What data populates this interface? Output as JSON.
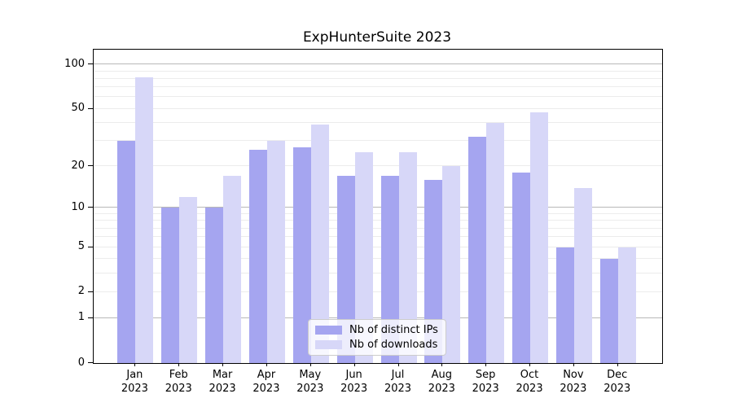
{
  "chart_data": {
    "type": "bar",
    "title": "ExpHunterSuite 2023",
    "categories": [
      "Jan",
      "Feb",
      "Mar",
      "Apr",
      "May",
      "Jun",
      "Jul",
      "Aug",
      "Sep",
      "Oct",
      "Nov",
      "Dec"
    ],
    "year_label": "2023",
    "series": [
      {
        "name": "Nb of distinct IPs",
        "color": "#a5a5f0",
        "values": [
          30,
          10,
          10,
          26,
          27,
          17,
          17,
          16,
          32,
          18,
          5,
          4
        ]
      },
      {
        "name": "Nb of downloads",
        "color": "#d7d7f8",
        "values": [
          82,
          12,
          17,
          30,
          39,
          25,
          25,
          20,
          40,
          47,
          14,
          5
        ]
      }
    ],
    "xlabel": "",
    "ylabel": "",
    "yscale": "log1p",
    "ylim": [
      0,
      126
    ],
    "y_ticks": [
      0,
      1,
      2,
      5,
      10,
      20,
      50,
      100
    ],
    "y_major_gridlines": [
      1,
      10,
      100
    ],
    "y_minor_gridlines": [
      2,
      3,
      4,
      5,
      6,
      7,
      8,
      9,
      20,
      30,
      40,
      50,
      60,
      70,
      80,
      90
    ],
    "grid": true,
    "legend_position": "lower center"
  },
  "colors": {
    "major_grid": "#b8b8b8",
    "minor_grid": "#ececec",
    "spine": "#000000",
    "text": "#000000",
    "background": "#ffffff"
  }
}
